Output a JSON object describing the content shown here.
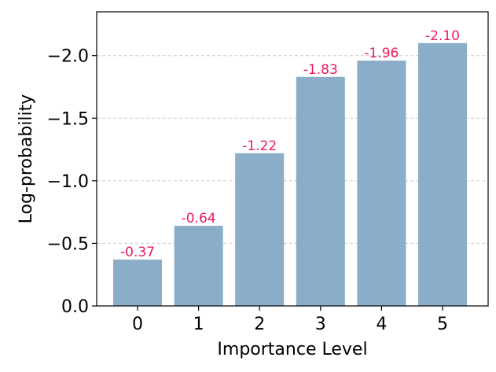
{
  "chart_data": {
    "type": "bar",
    "categories": [
      "0",
      "1",
      "2",
      "3",
      "4",
      "5"
    ],
    "values": [
      -0.37,
      -0.64,
      -1.22,
      -1.83,
      -1.96,
      -2.1
    ],
    "data_labels": [
      "-0.37",
      "-0.64",
      "-1.22",
      "-1.83",
      "-1.96",
      "-2.10"
    ],
    "xlabel": "Importance Level",
    "ylabel": "Log-probability",
    "y_axis_inverted": true,
    "ylim": [
      0,
      -2.35
    ],
    "yticks": [
      0,
      -0.5,
      -1.0,
      -1.5,
      -2.0
    ],
    "ytick_labels": [
      "0.0",
      "−0.5",
      "−1.0",
      "−1.5",
      "−2.0"
    ],
    "grid": "y dashed",
    "bar_color": "#8aadc8",
    "label_color": "#f0195a"
  }
}
